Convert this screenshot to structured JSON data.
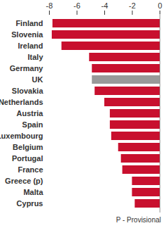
{
  "chart_data": {
    "type": "bar",
    "orientation": "horizontal",
    "categories": [
      "Finland",
      "Slovenia",
      "Ireland",
      "Italy",
      "Germany",
      "UK",
      "Slovakia",
      "Netherlands",
      "Austria",
      "Spain",
      "Luxembourg",
      "Belgium",
      "Portugal",
      "France",
      "Greece (p)",
      "Malta",
      "Cyprus"
    ],
    "values": [
      -7.75,
      -7.8,
      -7.1,
      -5.1,
      -4.9,
      -4.9,
      -4.7,
      -4.0,
      -3.6,
      -3.6,
      -3.5,
      -3.0,
      -2.8,
      -2.7,
      -2.0,
      -2.0,
      -1.8
    ],
    "colors": [
      "#c8102e",
      "#c8102e",
      "#c8102e",
      "#c8102e",
      "#c8102e",
      "#999999",
      "#c8102e",
      "#c8102e",
      "#c8102e",
      "#c8102e",
      "#c8102e",
      "#c8102e",
      "#c8102e",
      "#c8102e",
      "#c8102e",
      "#c8102e",
      "#c8102e"
    ],
    "xlim": [
      -8,
      0
    ],
    "xticks": [
      -8,
      -6,
      -4,
      -2,
      0
    ],
    "grid": false,
    "note": "P - Provisional"
  }
}
